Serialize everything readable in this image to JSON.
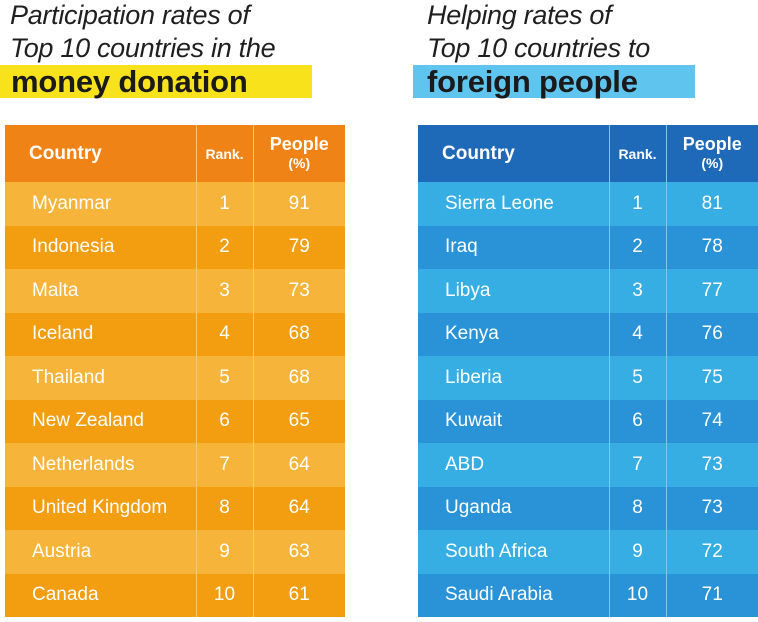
{
  "left_panel": {
    "title_line1": "Participation rates of",
    "title_line2": "Top 10 countries in the",
    "title_highlight": "money donation",
    "highlight_color": "#f8e21c",
    "header": {
      "country": "Country",
      "rank": "Rank.",
      "people": "People",
      "people_unit": "(%)"
    },
    "colors": {
      "header": "#ef8316",
      "row_light": "#f7b43a",
      "row_dark": "#f39d10"
    }
  },
  "right_panel": {
    "title_line1": "Helping rates of",
    "title_line2": "Top 10 countries to",
    "title_highlight": "foreign people",
    "highlight_color": "#5fc4ee",
    "header": {
      "country": "Country",
      "rank": "Rank.",
      "people": "People",
      "people_unit": "(%)"
    },
    "colors": {
      "header": "#1f6ab8",
      "row_light": "#36aee3",
      "row_dark": "#2a93d8"
    }
  },
  "chart_data": [
    {
      "type": "table",
      "title": "Participation rates of Top 10 countries in the money donation",
      "columns": [
        "Country",
        "Rank.",
        "People (%)"
      ],
      "rows": [
        [
          "Myanmar",
          "1",
          "91"
        ],
        [
          "Indonesia",
          "2",
          "79"
        ],
        [
          "Malta",
          "3",
          "73"
        ],
        [
          "Iceland",
          "4",
          "68"
        ],
        [
          "Thailand",
          "5",
          "68"
        ],
        [
          "New Zealand",
          "6",
          "65"
        ],
        [
          "Netherlands",
          "7",
          "64"
        ],
        [
          "United Kingdom",
          "8",
          "64"
        ],
        [
          "Austria",
          "9",
          "63"
        ],
        [
          "Canada",
          "10",
          "61"
        ]
      ]
    },
    {
      "type": "table",
      "title": "Helping rates of Top 10 countries to foreign people",
      "columns": [
        "Country",
        "Rank.",
        "People (%)"
      ],
      "rows": [
        [
          "Sierra Leone",
          "1",
          "81"
        ],
        [
          "Iraq",
          "2",
          "78"
        ],
        [
          "Libya",
          "3",
          "77"
        ],
        [
          "Kenya",
          "4",
          "76"
        ],
        [
          "Liberia",
          "5",
          "75"
        ],
        [
          "Kuwait",
          "6",
          "74"
        ],
        [
          "ABD",
          "7",
          "73"
        ],
        [
          "Uganda",
          "8",
          "73"
        ],
        [
          "South Africa",
          "9",
          "72"
        ],
        [
          "Saudi Arabia",
          "10",
          "71"
        ]
      ]
    }
  ]
}
